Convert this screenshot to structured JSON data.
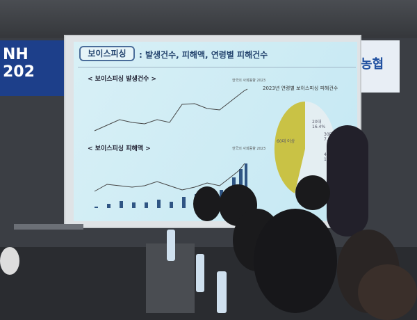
{
  "banner_left": "NH 202",
  "banner_right": "농협",
  "slide": {
    "tab": "보이스피싱",
    "title": ": 발생건수, 피해액, 연령별 피해건수",
    "chart1_title": "< 보이스피싱 발생건수 >",
    "chart2_title": "< 보이스피싱 피해액 >",
    "source": "한국의 사회동향 2023",
    "pie_title": "2023년 연령별 보이스피싱 피해건수",
    "pie_labels": [
      {
        "label": "20대",
        "value": "16.4%"
      },
      {
        "label": "30대",
        "value": "7.2%"
      },
      {
        "label": "40대",
        "value": "15.1%"
      },
      {
        "label": "60대 이상",
        "value": ""
      }
    ]
  },
  "colors": {
    "slide_bg": "#c5e8f3",
    "title": "#25456f",
    "pie_main": "#c9c245",
    "bar": "#2f5584"
  }
}
